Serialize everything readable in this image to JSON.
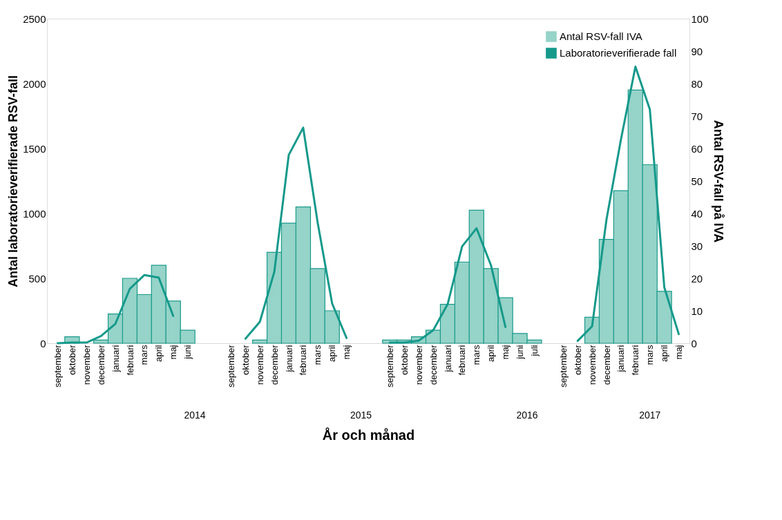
{
  "chart_data": {
    "type": "bar",
    "xlabel": "År och månad",
    "ylabel": "Antal laboratorieverifierade RSV-fall",
    "y2label": "Antal RSV-fall på IVA",
    "categories": [
      "september",
      "oktober",
      "november",
      "december",
      "januari",
      "februari",
      "mars",
      "april",
      "maj",
      "juni",
      null,
      null,
      "september",
      "oktober",
      "november",
      "december",
      "januari",
      "februari",
      "mars",
      "april",
      "maj",
      null,
      null,
      "september",
      "oktober",
      "november",
      "december",
      "januari",
      "februari",
      "mars",
      "april",
      "maj",
      "juni",
      "juli",
      null,
      "september",
      "oktober",
      "november",
      "december",
      "januari",
      "februari",
      "mars",
      "april",
      "maj"
    ],
    "series": [
      {
        "name": "Antal RSV-fall IVA",
        "axis": "y2",
        "color": "#96d3c8",
        "values": [
          null,
          2,
          null,
          1,
          9,
          20,
          15,
          24,
          13,
          4,
          null,
          null,
          null,
          null,
          1,
          28,
          37,
          42,
          23,
          10,
          null,
          null,
          null,
          1,
          1,
          2,
          4,
          12,
          25,
          41,
          23,
          14,
          3,
          1,
          null,
          null,
          null,
          8,
          32,
          47,
          78,
          55,
          16,
          null
        ]
      },
      {
        "name": "Laboratorieverifierade fall",
        "type": "line",
        "color": "#15998b",
        "values": [
          0,
          5,
          5,
          55,
          150,
          420,
          525,
          505,
          210,
          null,
          null,
          null,
          null,
          35,
          165,
          550,
          1450,
          1660,
          930,
          307,
          40,
          null,
          null,
          5,
          5,
          20,
          100,
          300,
          745,
          885,
          600,
          125,
          null,
          null,
          null,
          null,
          18,
          130,
          955,
          1570,
          2130,
          1800,
          430,
          70
        ]
      }
    ],
    "ylim": [
      0,
      2500
    ],
    "yticks": [
      0,
      500,
      1000,
      1500,
      2000,
      2500
    ],
    "y2lim": [
      0,
      100
    ],
    "y2ticks": [
      0,
      10,
      20,
      30,
      40,
      50,
      60,
      70,
      80,
      90,
      100
    ],
    "annotations": [
      "2014",
      "2015",
      "2016",
      "2017"
    ],
    "legend": "top right",
    "grid": false
  }
}
